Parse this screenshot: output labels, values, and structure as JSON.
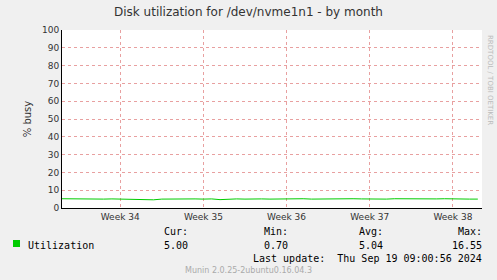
{
  "chart_data": {
    "type": "line",
    "title": "Disk utilization for /dev/nvme1n1 - by month",
    "y_label": "% busy",
    "x": [
      33.3,
      33.4,
      33.5,
      33.6,
      33.7,
      33.8,
      33.9,
      34.0,
      34.1,
      34.2,
      34.3,
      34.4,
      34.5,
      34.6,
      34.7,
      34.8,
      34.9,
      35.0,
      35.1,
      35.2,
      35.3,
      35.4,
      35.5,
      35.6,
      35.7,
      35.8,
      35.9,
      36.0,
      36.1,
      36.2,
      36.3,
      36.4,
      36.5,
      36.6,
      36.7,
      36.8,
      36.9,
      37.0,
      37.1,
      37.2,
      37.3,
      37.4,
      37.5,
      37.6,
      37.7,
      37.8,
      37.9,
      38.0,
      38.1,
      38.2,
      38.3
    ],
    "series": [
      {
        "name": "Utilization",
        "color": "#00cc00",
        "values": [
          5.2,
          5.1,
          5.0,
          5.1,
          5.2,
          5.0,
          5.1,
          5.0,
          5.1,
          5.0,
          4.9,
          4.6,
          5.0,
          5.1,
          5.2,
          5.0,
          5.1,
          5.0,
          5.1,
          4.7,
          5.0,
          5.1,
          5.0,
          5.2,
          5.1,
          5.0,
          5.1,
          5.0,
          5.1,
          5.2,
          5.0,
          5.1,
          5.0,
          5.1,
          5.0,
          5.2,
          5.1,
          5.0,
          5.1,
          5.0,
          5.2,
          5.1,
          5.0,
          5.1,
          5.0,
          5.1,
          5.2,
          5.0,
          5.1,
          5.0,
          5.0
        ],
        "stats": {
          "labels": [
            "Cur:",
            "Min:",
            "Avg:",
            "Max:"
          ],
          "values": [
            5.0,
            0.7,
            5.04,
            16.55
          ],
          "value_labels": [
            "5.00",
            "0.70",
            "5.04",
            "16.55"
          ]
        }
      }
    ],
    "xlim": [
      33.3,
      38.35
    ],
    "xticks": [
      {
        "value": 34,
        "label": "Week 34"
      },
      {
        "value": 35,
        "label": "Week 35"
      },
      {
        "value": 36,
        "label": "Week 36"
      },
      {
        "value": 37,
        "label": "Week 37"
      },
      {
        "value": 38,
        "label": "Week 38"
      }
    ],
    "ylim": [
      0,
      100
    ],
    "yticks": [
      0,
      10,
      20,
      30,
      40,
      50,
      60,
      70,
      80,
      90,
      100
    ],
    "grid": true,
    "last_update": "Last update:  Thu Sep 19 09:00:56 2024",
    "footer": "Munin 2.0.25-2ubuntu0.16.04.3",
    "watermark": "RRDTOOL / TOBI OETIKER"
  }
}
